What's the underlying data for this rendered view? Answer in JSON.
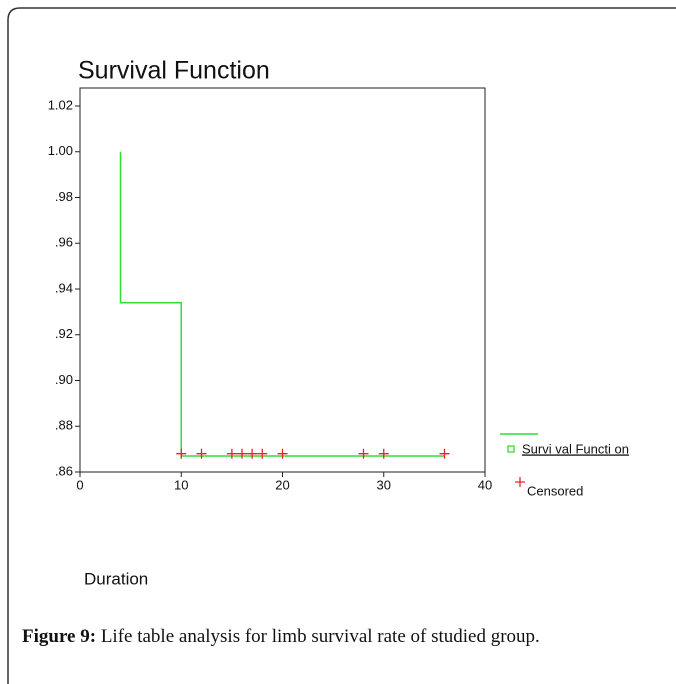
{
  "chart_data": {
    "type": "line",
    "title": "Survival Function",
    "x_label": "Duration",
    "caption": {
      "label": "Figure 9:",
      "text": "Life table analysis for limb survival rate of studied group."
    },
    "xlim": [
      0,
      40
    ],
    "xticks": [
      0,
      10,
      20,
      30,
      40
    ],
    "ylim": [
      0.86,
      1.02
    ],
    "yticks": [
      {
        "value": 0.86,
        "label": ".86"
      },
      {
        "value": 0.88,
        "label": ".88"
      },
      {
        "value": 0.9,
        "label": ".90"
      },
      {
        "value": 0.92,
        "label": ".92"
      },
      {
        "value": 0.94,
        "label": ".94"
      },
      {
        "value": 0.96,
        "label": ".96"
      },
      {
        "value": 0.98,
        "label": ".98"
      },
      {
        "value": 1.0,
        "label": "1.00"
      },
      {
        "value": 1.02,
        "label": "1.02"
      }
    ],
    "series": [
      {
        "name": "Survi val Functi on",
        "color": "#33dd33",
        "x": [
          4,
          4,
          10,
          10,
          36
        ],
        "values": [
          1.0,
          0.934,
          0.934,
          0.867,
          0.867
        ]
      },
      {
        "name": "Censored",
        "color": "#ee2222",
        "x": [
          10,
          12,
          15,
          16,
          17,
          18,
          20,
          28,
          30,
          36
        ],
        "values": [
          0.868,
          0.868,
          0.868,
          0.868,
          0.868,
          0.868,
          0.868,
          0.868,
          0.868,
          0.868
        ]
      }
    ]
  }
}
